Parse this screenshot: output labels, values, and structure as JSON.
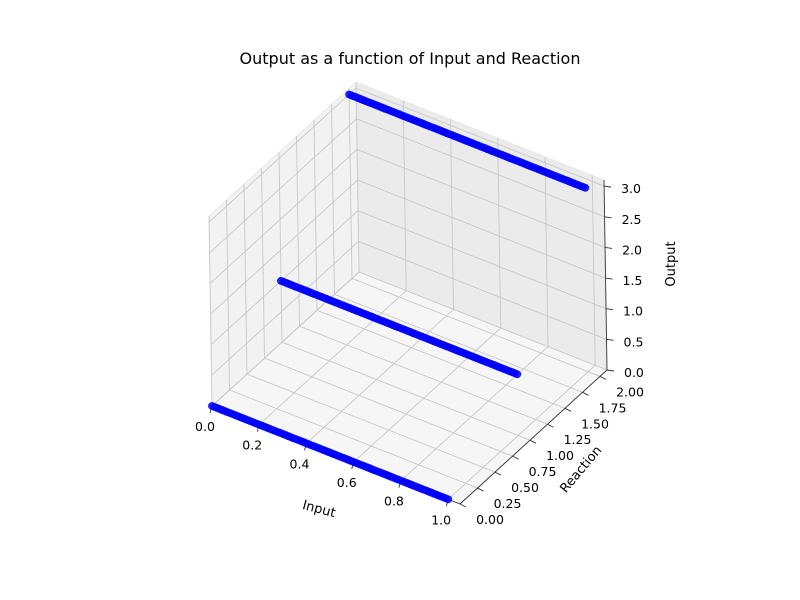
{
  "chart_data": {
    "type": "scatter",
    "projection": "3d",
    "title": "Output as a function of Input and Reaction",
    "xlabel": "Input",
    "ylabel": "Reaction",
    "zlabel": "Output",
    "xlim": [
      0,
      1.05
    ],
    "ylim": [
      0,
      2.1
    ],
    "zlim": [
      0,
      3.1
    ],
    "xticks": [
      "0.0",
      "0.2",
      "0.4",
      "0.6",
      "0.8",
      "1.0"
    ],
    "yticks": [
      "0.00",
      "0.25",
      "0.50",
      "0.75",
      "1.00",
      "1.25",
      "1.50",
      "1.75",
      "2.00"
    ],
    "zticks": [
      "0.0",
      "0.5",
      "1.0",
      "1.5",
      "2.0",
      "2.5",
      "3.0"
    ],
    "grid": true,
    "series": [
      {
        "color": "#0000ff",
        "lines": [
          {
            "reaction": 0,
            "output": 0,
            "input_range": [
              0,
              1
            ]
          },
          {
            "reaction": 1,
            "output": 1,
            "input_range": [
              0,
              1
            ]
          },
          {
            "reaction": 2,
            "output": 3,
            "input_range": [
              0,
              1
            ]
          }
        ],
        "points_per_line": 100
      }
    ]
  }
}
